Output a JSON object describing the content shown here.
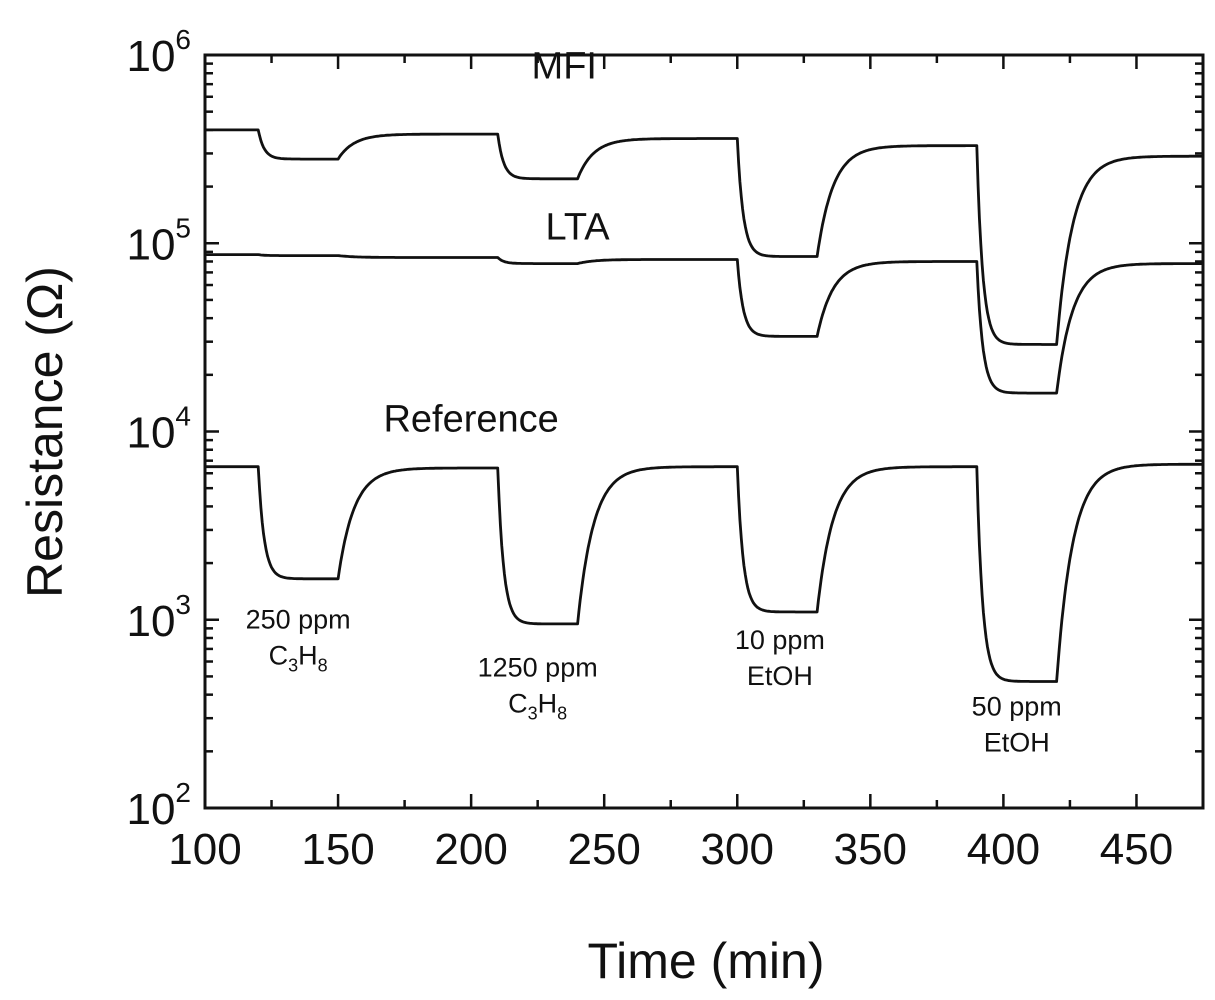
{
  "chart_data": {
    "type": "line",
    "title": "",
    "xlabel": "Time (min)",
    "ylabel": "Resistance (Ω)",
    "xlim": [
      100,
      475
    ],
    "ylim": [
      100,
      1000000
    ],
    "yscale": "log",
    "x_ticks": [
      100,
      150,
      200,
      250,
      300,
      350,
      400,
      450
    ],
    "y_ticks": [
      {
        "value": 100,
        "base": "10",
        "exp": "2"
      },
      {
        "value": 1000,
        "base": "10",
        "exp": "3"
      },
      {
        "value": 10000,
        "base": "10",
        "exp": "4"
      },
      {
        "value": 100000,
        "base": "10",
        "exp": "5"
      },
      {
        "value": 1000000,
        "base": "10",
        "exp": "6"
      }
    ],
    "series": [
      {
        "name": "MFI",
        "baseline": 400000,
        "recovered_levels": [
          380000,
          360000,
          330000,
          290000
        ],
        "exposures": [
          {
            "start": 120,
            "end": 150,
            "min": 280000
          },
          {
            "start": 210,
            "end": 240,
            "min": 220000
          },
          {
            "start": 300,
            "end": 330,
            "min": 85000
          },
          {
            "start": 390,
            "end": 420,
            "min": 29000
          }
        ]
      },
      {
        "name": "LTA",
        "baseline": 87000,
        "recovered_levels": [
          84000,
          82000,
          80000,
          78000
        ],
        "exposures": [
          {
            "start": 120,
            "end": 150,
            "min": 86000
          },
          {
            "start": 210,
            "end": 240,
            "min": 78000
          },
          {
            "start": 300,
            "end": 330,
            "min": 32000
          },
          {
            "start": 390,
            "end": 420,
            "min": 16000
          }
        ]
      },
      {
        "name": "Reference",
        "baseline": 6500,
        "recovered_levels": [
          6400,
          6500,
          6500,
          6700
        ],
        "exposures": [
          {
            "start": 120,
            "end": 150,
            "min": 1650
          },
          {
            "start": 210,
            "end": 240,
            "min": 950
          },
          {
            "start": 300,
            "end": 330,
            "min": 1100
          },
          {
            "start": 390,
            "end": 420,
            "min": 470
          }
        ]
      }
    ],
    "series_labels": [
      {
        "text": "MFI",
        "x": 235,
        "y": 750000
      },
      {
        "text": "LTA",
        "x": 240,
        "y": 105000
      },
      {
        "text": "Reference",
        "x": 200,
        "y": 10000
      }
    ],
    "annotations": [
      {
        "line1": "250 ppm",
        "formula": [
          [
            "C",
            ""
          ],
          [
            "3",
            "sub"
          ],
          [
            "H",
            ""
          ],
          [
            "8",
            "sub"
          ]
        ],
        "x": 135,
        "y": 900
      },
      {
        "line1": "1250 ppm",
        "formula": [
          [
            "C",
            ""
          ],
          [
            "3",
            "sub"
          ],
          [
            "H",
            ""
          ],
          [
            "8",
            "sub"
          ]
        ],
        "x": 225,
        "y": 500
      },
      {
        "line1": "10 ppm",
        "formula": [
          [
            "EtOH",
            ""
          ]
        ],
        "x": 316,
        "y": 700
      },
      {
        "line1": "50 ppm",
        "formula": [
          [
            "EtOH",
            ""
          ]
        ],
        "x": 405,
        "y": 310
      }
    ]
  }
}
